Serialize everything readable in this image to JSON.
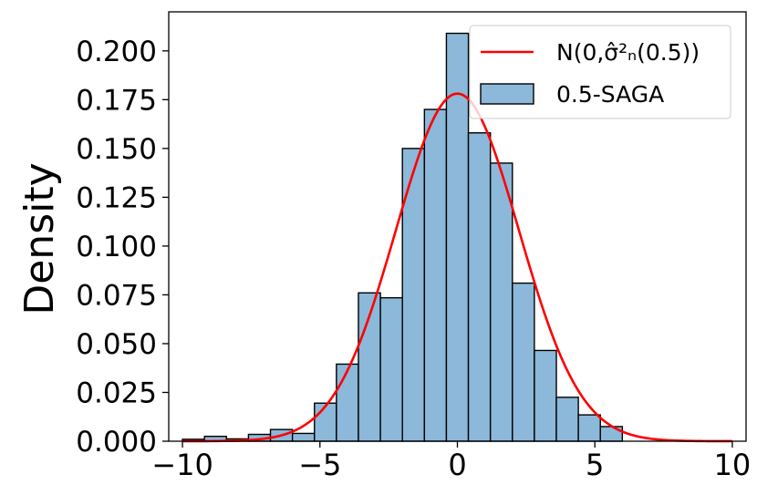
{
  "chart_data": {
    "type": "bar",
    "title": "",
    "xlabel": "",
    "ylabel": "Density",
    "xlim": [
      -10.5,
      10.5
    ],
    "ylim": [
      0,
      0.22
    ],
    "grid": false,
    "legend_position": "top-right",
    "x_ticks": [
      -10,
      -5,
      0,
      5,
      10
    ],
    "x_tick_labels": [
      "−10",
      "−5",
      "0",
      "5",
      "10"
    ],
    "y_ticks": [
      0,
      0.025,
      0.05,
      0.075,
      0.1,
      0.125,
      0.15,
      0.175,
      0.2
    ],
    "y_tick_labels": [
      "0.000",
      "0.025",
      "0.050",
      "0.075",
      "0.100",
      "0.125",
      "0.150",
      "0.175",
      "0.200"
    ],
    "series": [
      {
        "name": "0.5-SAGA",
        "kind": "histogram",
        "color": "#8cb8d9",
        "edge_color": "#000000",
        "bin_edges": [
          -10.0,
          -9.2,
          -8.4,
          -7.6,
          -6.8,
          -6.0,
          -5.2,
          -4.4,
          -3.6,
          -2.8,
          -2.0,
          -1.2,
          -0.4,
          0.4,
          1.2,
          2.0,
          2.8,
          3.6,
          4.4,
          5.2,
          6.0,
          6.8
        ],
        "densities": [
          0.001,
          0.0025,
          0.0012,
          0.0035,
          0.006,
          0.004,
          0.0195,
          0.0395,
          0.076,
          0.0735,
          0.15,
          0.17,
          0.209,
          0.158,
          0.1425,
          0.081,
          0.0465,
          0.0225,
          0.0135,
          0.0075,
          0.0
        ]
      },
      {
        "name": "N(0,σ̂²ₙ(0.5))",
        "kind": "normal_pdf",
        "color": "#ff0000",
        "mean": 0,
        "std": 2.24,
        "x_range": [
          -10,
          10
        ]
      }
    ]
  }
}
